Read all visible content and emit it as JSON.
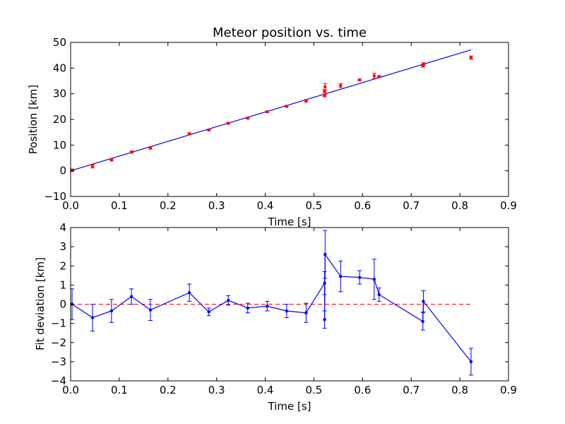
{
  "chart_data": [
    {
      "type": "scatter",
      "title": "Meteor position vs. time",
      "xlabel": "Time [s]",
      "ylabel": "Position [km]",
      "xlim": [
        0,
        0.9
      ],
      "ylim": [
        -10,
        50
      ],
      "xticks": [
        "0.0",
        "0.1",
        "0.2",
        "0.3",
        "0.4",
        "0.5",
        "0.6",
        "0.7",
        "0.8",
        "0.9"
      ],
      "yticks": [
        "−10",
        "0",
        "10",
        "20",
        "30",
        "40",
        "50"
      ],
      "grid": false,
      "colors": {
        "points": "#ff0000",
        "fit": "#0000ff"
      },
      "points": [
        {
          "x": 0.003,
          "y": 0.2,
          "err": 0.5
        },
        {
          "x": 0.045,
          "y": 1.8,
          "err": 0.7
        },
        {
          "x": 0.084,
          "y": 4.3,
          "err": 0.5
        },
        {
          "x": 0.125,
          "y": 7.3,
          "err": 0.4
        },
        {
          "x": 0.164,
          "y": 8.9,
          "err": 0.5
        },
        {
          "x": 0.244,
          "y": 14.4,
          "err": 0.4
        },
        {
          "x": 0.284,
          "y": 15.9,
          "err": 0.3
        },
        {
          "x": 0.324,
          "y": 18.5,
          "err": 0.3
        },
        {
          "x": 0.364,
          "y": 20.5,
          "err": 0.3
        },
        {
          "x": 0.404,
          "y": 23.0,
          "err": 0.3
        },
        {
          "x": 0.444,
          "y": 25.1,
          "err": 0.4
        },
        {
          "x": 0.484,
          "y": 27.2,
          "err": 0.5
        },
        {
          "x": 0.522,
          "y": 29.3,
          "err": 0.5
        },
        {
          "x": 0.522,
          "y": 31.0,
          "err": 0.6
        },
        {
          "x": 0.523,
          "y": 32.7,
          "err": 1.2
        },
        {
          "x": 0.555,
          "y": 33.2,
          "err": 0.8
        },
        {
          "x": 0.594,
          "y": 35.4,
          "err": 0.4
        },
        {
          "x": 0.624,
          "y": 37.0,
          "err": 1.0
        },
        {
          "x": 0.634,
          "y": 36.7,
          "err": 0.3
        },
        {
          "x": 0.724,
          "y": 40.9,
          "err": 0.5
        },
        {
          "x": 0.725,
          "y": 41.5,
          "err": 0.6
        },
        {
          "x": 0.823,
          "y": 44.1,
          "err": 0.6
        }
      ],
      "fit_line": [
        [
          0.0,
          0.0
        ],
        [
          0.823,
          47.1
        ]
      ]
    },
    {
      "type": "line",
      "xlabel": "Time [s]",
      "ylabel": "Fit deviation [km]",
      "xlim": [
        0,
        0.9
      ],
      "ylim": [
        -4,
        4
      ],
      "xticks": [
        "0.0",
        "0.1",
        "0.2",
        "0.3",
        "0.4",
        "0.5",
        "0.6",
        "0.7",
        "0.8",
        "0.9"
      ],
      "yticks": [
        "−4",
        "−3",
        "−2",
        "−1",
        "0",
        "1",
        "2",
        "3",
        "4"
      ],
      "grid": false,
      "colors": {
        "series": "#0000ff",
        "zero_line": "#ff0000"
      },
      "zero_line": {
        "y": 0,
        "x_start": 0,
        "x_end": 0.823,
        "style": "dashed"
      },
      "points": [
        {
          "x": 0.003,
          "y": 0.0,
          "err": 0.8
        },
        {
          "x": 0.045,
          "y": -0.7,
          "err": 0.7
        },
        {
          "x": 0.084,
          "y": -0.35,
          "err": 0.6
        },
        {
          "x": 0.125,
          "y": 0.4,
          "err": 0.4
        },
        {
          "x": 0.164,
          "y": -0.3,
          "err": 0.55
        },
        {
          "x": 0.244,
          "y": 0.6,
          "err": 0.45
        },
        {
          "x": 0.284,
          "y": -0.4,
          "err": 0.2
        },
        {
          "x": 0.324,
          "y": 0.2,
          "err": 0.25
        },
        {
          "x": 0.364,
          "y": -0.2,
          "err": 0.25
        },
        {
          "x": 0.404,
          "y": -0.1,
          "err": 0.25
        },
        {
          "x": 0.444,
          "y": -0.35,
          "err": 0.35
        },
        {
          "x": 0.484,
          "y": -0.45,
          "err": 0.5
        },
        {
          "x": 0.522,
          "y": 1.1,
          "err": 0.6
        },
        {
          "x": 0.522,
          "y": -0.8,
          "err": 0.45
        },
        {
          "x": 0.523,
          "y": 2.6,
          "err": 1.25
        },
        {
          "x": 0.555,
          "y": 1.45,
          "err": 0.8
        },
        {
          "x": 0.594,
          "y": 1.4,
          "err": 0.35
        },
        {
          "x": 0.624,
          "y": 1.3,
          "err": 1.05
        },
        {
          "x": 0.634,
          "y": 0.5,
          "err": 0.35
        },
        {
          "x": 0.724,
          "y": -0.9,
          "err": 0.45
        },
        {
          "x": 0.725,
          "y": 0.15,
          "err": 0.55
        },
        {
          "x": 0.823,
          "y": -3.0,
          "err": 0.7
        }
      ]
    }
  ]
}
